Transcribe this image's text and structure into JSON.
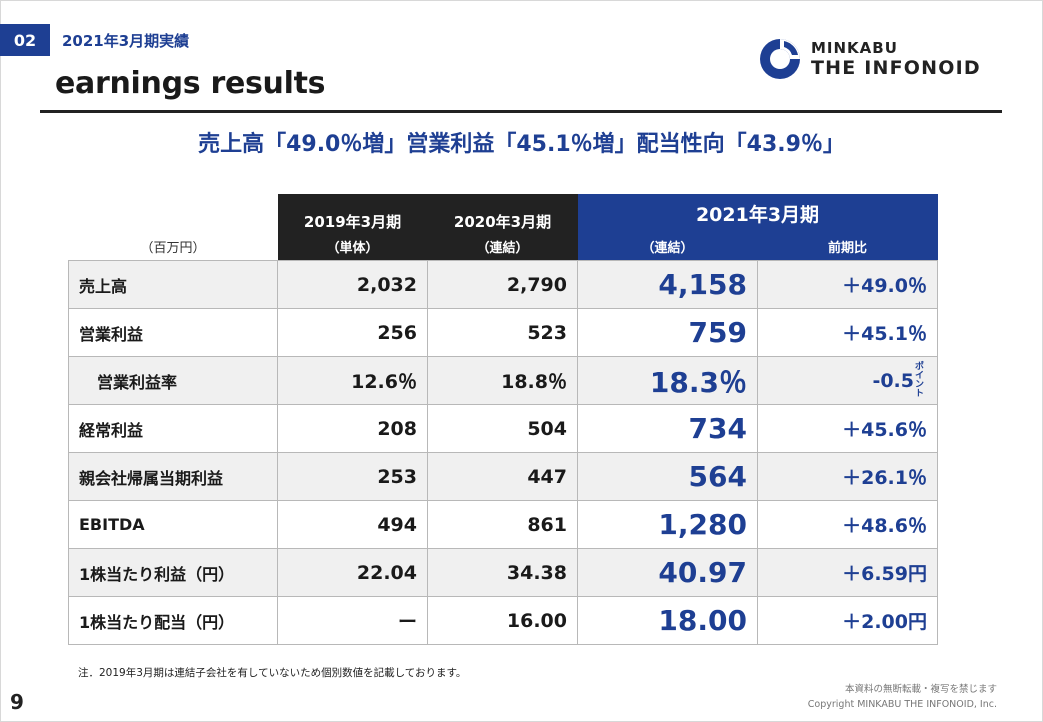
{
  "header": {
    "section_number": "02",
    "section_title": "2021年3月期実績",
    "page_heading": "earnings results"
  },
  "logo": {
    "line1": "MINKABU",
    "line2": "THE INFONOID",
    "mark_color": "#1e3f93",
    "icon": "minkabu-logo-icon"
  },
  "headline": "売上高「49.0％増」営業利益「45.1％増」配当性向「43.9％」",
  "table": {
    "unit_label": "（百万円）",
    "columns": [
      {
        "year": "2019年3月期",
        "basis": "（単体）"
      },
      {
        "year": "2020年3月期",
        "basis": "（連結）"
      },
      {
        "year": "2021年3月期",
        "basis": "（連結）",
        "yoy": "前期比"
      }
    ],
    "rows": [
      {
        "label": "売上高",
        "y2019": "2,032",
        "y2020": "2,790",
        "y2021": "4,158",
        "yoy": "＋49.0％"
      },
      {
        "label": "営業利益",
        "y2019": "256",
        "y2020": "523",
        "y2021": "759",
        "yoy": "＋45.1％"
      },
      {
        "label": "営業利益率",
        "y2019": "12.6％",
        "y2020": "18.8％",
        "y2021": "18.3％",
        "yoy": "-0.5",
        "yoy_unit_top": "ポイ",
        "yoy_unit_bottom": "ント"
      },
      {
        "label": "経常利益",
        "y2019": "208",
        "y2020": "504",
        "y2021": "734",
        "yoy": "＋45.6％"
      },
      {
        "label": "親会社帰属当期利益",
        "y2019": "253",
        "y2020": "447",
        "y2021": "564",
        "yoy": "＋26.1％"
      },
      {
        "label": "EBITDA",
        "y2019": "494",
        "y2020": "861",
        "y2021": "1,280",
        "yoy": "＋48.6％"
      },
      {
        "label": "1株当たり利益（円）",
        "y2019": "22.04",
        "y2020": "34.38",
        "y2021": "40.97",
        "yoy": "＋6.59円"
      },
      {
        "label": "1株当たり配当（円）",
        "y2019": "ー",
        "y2020": "16.00",
        "y2021": "18.00",
        "yoy": "＋2.00円"
      }
    ]
  },
  "footnote": "注．2019年3月期は連結子会社を有していないため個別数値を記載しております。",
  "footer": {
    "page_number": "9",
    "notice": "本資料の無断転載・複写を禁じます",
    "copyright": "Copyright MINKABU THE INFONOID, Inc."
  },
  "colors": {
    "accent": "#1e3f93",
    "header_dark": "#222222",
    "row_alt": "#f0f0f0"
  }
}
